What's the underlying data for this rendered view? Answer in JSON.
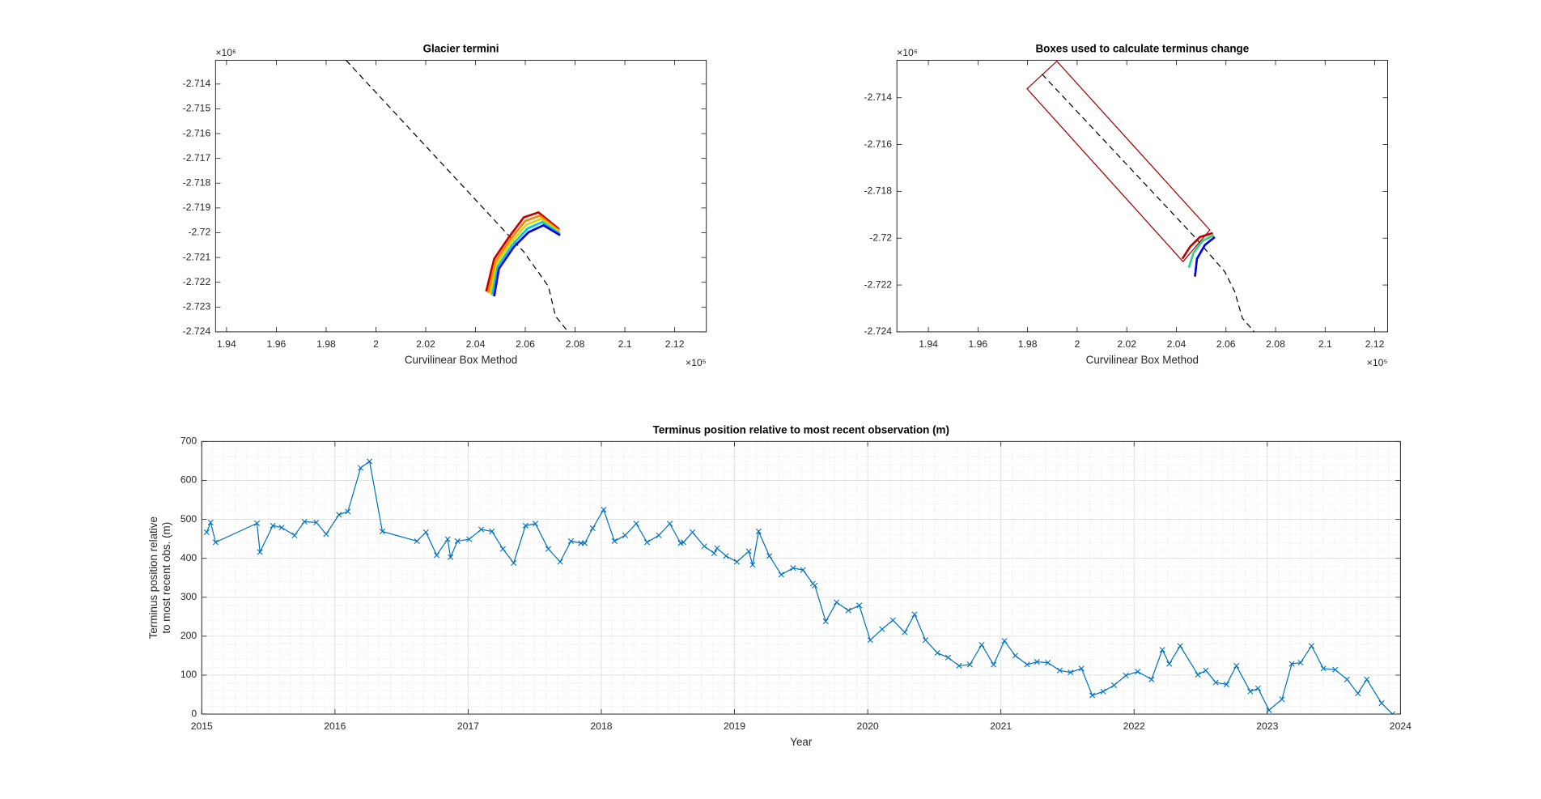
{
  "chart_data": [
    {
      "type": "line",
      "title": "Glacier termini",
      "xlabel": "Curvilinear Box Method",
      "x_exponent": "×10⁵",
      "y_exponent": "×10⁶",
      "xlim": [
        1.9356,
        2.1327
      ],
      "ylim": [
        -2.724,
        -2.71304
      ],
      "xticks": [
        1.94,
        1.96,
        1.98,
        2,
        2.02,
        2.04,
        2.06,
        2.08,
        2.1,
        2.12
      ],
      "yticks": [
        -2.724,
        -2.723,
        -2.722,
        -2.721,
        -2.72,
        -2.719,
        -2.718,
        -2.717,
        -2.716,
        -2.715,
        -2.714
      ],
      "box": true,
      "grid": false,
      "series": [
        {
          "color": "#000000",
          "dashed": true,
          "x": [
            1.988,
            2.0594,
            2.0693,
            2.0721,
            2.0772
          ],
          "values": [
            -2.71304,
            -2.72077,
            -2.72217,
            -2.72336,
            -2.724
          ]
        },
        {
          "color": "#c00000",
          "x": [
            2.0443,
            2.0475,
            2.0534,
            2.0594,
            2.0653,
            2.0736
          ],
          "values": [
            -2.72237,
            -2.72105,
            -2.72018,
            -2.71938,
            -2.71918,
            -2.71986
          ]
        },
        {
          "color": "#ff8000",
          "x": [
            2.0451,
            2.048,
            2.0539,
            2.0599,
            2.0658,
            2.0737
          ],
          "values": [
            -2.72242,
            -2.72115,
            -2.72028,
            -2.71953,
            -2.71931,
            -2.71992
          ]
        },
        {
          "color": "#d8d800",
          "x": [
            2.0459,
            2.0485,
            2.0544,
            2.0604,
            2.0663,
            2.0738
          ],
          "values": [
            -2.72247,
            -2.72125,
            -2.72038,
            -2.71968,
            -2.71944,
            -2.71998
          ]
        },
        {
          "color": "#00c8e0",
          "x": [
            2.0467,
            2.049,
            2.0549,
            2.0609,
            2.0668,
            2.0739
          ],
          "values": [
            -2.72252,
            -2.72135,
            -2.72048,
            -2.71983,
            -2.71957,
            -2.72004
          ]
        },
        {
          "color": "#0000e0",
          "x": [
            2.0475,
            2.0494,
            2.0554,
            2.0613,
            2.0673,
            2.074
          ],
          "values": [
            -2.72257,
            -2.72145,
            -2.72057,
            -2.71998,
            -2.7197,
            -2.7201
          ]
        }
      ]
    },
    {
      "type": "line",
      "title": "Boxes used to calculate terminus change",
      "xlabel": "Curvilinear Box Method",
      "x_exponent": "×10⁵",
      "y_exponent": "×10⁶",
      "xlim": [
        1.9273,
        2.1252
      ],
      "ylim": [
        -2.724,
        -2.7124
      ],
      "xticks": [
        1.94,
        1.96,
        1.98,
        2,
        2.02,
        2.04,
        2.06,
        2.08,
        2.1,
        2.12
      ],
      "yticks": [
        -2.724,
        -2.722,
        -2.72,
        -2.718,
        -2.716,
        -2.714
      ],
      "box": true,
      "grid": false,
      "series": [
        {
          "color": "#a00000",
          "closed": true,
          "x": [
            1.9798,
            1.9918,
            2.0535,
            2.0427
          ],
          "values": [
            -2.71362,
            -2.71244,
            -2.71965,
            -2.721
          ]
        },
        {
          "color": "#000000",
          "dashed": true,
          "x": [
            1.9858,
            2.0467,
            2.0595,
            2.0635,
            2.0666,
            2.0714
          ],
          "values": [
            -2.71299,
            -2.71987,
            -2.72143,
            -2.72227,
            -2.72341,
            -2.724
          ]
        },
        {
          "color": "#c00000",
          "x": [
            2.0424,
            2.0455,
            2.0495,
            2.0547
          ],
          "values": [
            -2.72088,
            -2.72037,
            -2.71995,
            -2.71978
          ]
        },
        {
          "color": "#30d080",
          "x": [
            2.045,
            2.0469,
            2.0505,
            2.0551
          ],
          "values": [
            -2.72126,
            -2.72063,
            -2.72012,
            -2.71987
          ]
        },
        {
          "color": "#0000e0",
          "x": [
            2.0475,
            2.0483,
            2.0515,
            2.0555
          ],
          "values": [
            -2.72164,
            -2.72088,
            -2.72029,
            -2.71995
          ]
        }
      ]
    },
    {
      "type": "line",
      "title": "Terminus position relative to most recent observation (m)",
      "xlabel": "Year",
      "ylabel": [
        "Terminus position relative",
        "to most recent obs. (m)"
      ],
      "xlim": [
        2015,
        2024
      ],
      "ylim": [
        0,
        700
      ],
      "xticks": [
        2015,
        2016,
        2017,
        2018,
        2019,
        2020,
        2021,
        2022,
        2023,
        2024
      ],
      "yticks": [
        0,
        100,
        200,
        300,
        400,
        500,
        600,
        700
      ],
      "box": true,
      "grid": true,
      "minor_grid": true,
      "x": [
        2015.037,
        2015.067,
        2015.104,
        2015.415,
        2015.437,
        2015.534,
        2015.6,
        2015.697,
        2015.771,
        2015.86,
        2015.934,
        2016.03,
        2016.097,
        2016.193,
        2016.26,
        2016.356,
        2016.616,
        2016.683,
        2016.764,
        2016.846,
        2016.868,
        2016.92,
        2017.008,
        2017.098,
        2017.179,
        2017.261,
        2017.342,
        2017.431,
        2017.505,
        2017.602,
        2017.691,
        2017.772,
        2017.847,
        2017.876,
        2017.935,
        2018.017,
        2018.099,
        2018.179,
        2018.262,
        2018.343,
        2018.432,
        2018.514,
        2018.595,
        2018.617,
        2018.684,
        2018.773,
        2018.847,
        2018.869,
        2018.936,
        2019.018,
        2019.107,
        2019.136,
        2019.181,
        2019.262,
        2019.351,
        2019.44,
        2019.514,
        2019.588,
        2019.603,
        2019.685,
        2019.766,
        2019.855,
        2019.937,
        2020.019,
        2020.108,
        2020.189,
        2020.278,
        2020.352,
        2020.434,
        2020.523,
        2020.604,
        2020.686,
        2020.767,
        2020.856,
        2020.945,
        2021.027,
        2021.108,
        2021.197,
        2021.271,
        2021.353,
        2021.442,
        2021.523,
        2021.605,
        2021.686,
        2021.768,
        2021.85,
        2021.938,
        2022.027,
        2022.131,
        2022.212,
        2022.264,
        2022.346,
        2022.479,
        2022.539,
        2022.613,
        2022.694,
        2022.768,
        2022.872,
        2022.931,
        2023.013,
        2023.11,
        2023.184,
        2023.25,
        2023.332,
        2023.421,
        2023.51,
        2023.599,
        2023.68,
        2023.747,
        2023.858,
        2023.94
      ],
      "series": [
        {
          "color": "#0072bd",
          "marker": "x",
          "values": [
            467,
            492,
            441,
            490,
            416,
            484,
            479,
            459,
            494,
            492,
            462,
            512,
            520,
            632,
            649,
            469,
            444,
            467,
            408,
            449,
            403,
            444,
            449,
            474,
            469,
            424,
            388,
            484,
            489,
            424,
            391,
            444,
            439,
            439,
            477,
            525,
            444,
            459,
            489,
            441,
            459,
            489,
            439,
            441,
            467,
            431,
            413,
            426,
            406,
            391,
            418,
            383,
            469,
            406,
            358,
            375,
            370,
            335,
            330,
            238,
            287,
            266,
            279,
            190,
            218,
            241,
            210,
            256,
            190,
            157,
            145,
            124,
            127,
            178,
            127,
            188,
            150,
            127,
            134,
            132,
            112,
            107,
            117,
            48,
            58,
            74,
            99,
            109,
            89,
            165,
            129,
            175,
            101,
            112,
            81,
            76,
            124,
            58,
            66,
            10,
            38,
            129,
            132,
            175,
            117,
            114,
            89,
            53,
            89,
            28,
            0
          ]
        }
      ]
    }
  ]
}
